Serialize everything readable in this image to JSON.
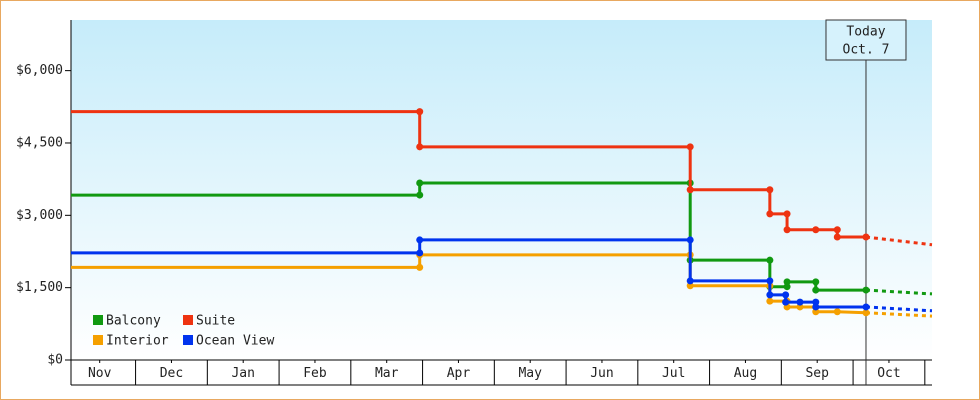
{
  "chart_data": {
    "type": "step-line",
    "xlim": [
      0.1,
      12.1
    ],
    "xticks": [
      {
        "value": 0.5,
        "label": "Nov"
      },
      {
        "value": 1.5,
        "label": "Dec"
      },
      {
        "value": 2.5,
        "label": "Jan"
      },
      {
        "value": 3.5,
        "label": "Feb"
      },
      {
        "value": 4.5,
        "label": "Mar"
      },
      {
        "value": 5.5,
        "label": "Apr"
      },
      {
        "value": 6.5,
        "label": "May"
      },
      {
        "value": 7.5,
        "label": "Jun"
      },
      {
        "value": 8.5,
        "label": "Jul"
      },
      {
        "value": 9.5,
        "label": "Aug"
      },
      {
        "value": 10.5,
        "label": "Sep"
      },
      {
        "value": 11.5,
        "label": "Oct"
      }
    ],
    "ylim": [
      0,
      7050
    ],
    "yticks": [
      {
        "value": 0,
        "label": "$0"
      },
      {
        "value": 1500,
        "label": "$1,500"
      },
      {
        "value": 3000,
        "label": "$3,000"
      },
      {
        "value": 4500,
        "label": "$4,500"
      },
      {
        "value": 6000,
        "label": "$6,000"
      }
    ],
    "grid": false,
    "legend": "lower-left",
    "forecast_x": 12.1,
    "series": [
      {
        "name": "Balcony",
        "color": "#119911",
        "x": [
          0.1,
          4.96,
          4.96,
          8.73,
          8.73,
          9.84,
          9.84,
          10.08,
          10.08,
          10.48,
          10.48,
          11.18
        ],
        "values": [
          3420,
          3420,
          3670,
          3670,
          2070,
          2070,
          1520,
          1520,
          1620,
          1620,
          1450,
          1450
        ],
        "forecast_value": 1370
      },
      {
        "name": "Suite",
        "color": "#ee3311",
        "x": [
          0.1,
          4.96,
          4.96,
          8.73,
          8.73,
          9.84,
          9.84,
          10.08,
          10.08,
          10.48,
          10.78,
          10.78,
          11.18
        ],
        "values": [
          5150,
          5150,
          4420,
          4420,
          3530,
          3530,
          3030,
          3030,
          2700,
          2700,
          2700,
          2550,
          2550
        ],
        "forecast_value": 2390
      },
      {
        "name": "Interior",
        "color": "#f5a000",
        "x": [
          0.1,
          4.96,
          4.96,
          8.73,
          8.73,
          9.84,
          9.84,
          10.08,
          10.08,
          10.26,
          10.48,
          10.48,
          10.78,
          11.18
        ],
        "values": [
          1920,
          1920,
          2180,
          2180,
          1540,
          1540,
          1220,
          1220,
          1100,
          1100,
          1100,
          1000,
          1000,
          980
        ],
        "forecast_value": 910
      },
      {
        "name": "Ocean View",
        "color": "#0033ee",
        "x": [
          0.1,
          4.96,
          4.96,
          8.73,
          8.73,
          9.84,
          9.84,
          10.06,
          10.06,
          10.26,
          10.48,
          10.48,
          11.18
        ],
        "values": [
          2220,
          2220,
          2490,
          2490,
          1640,
          1640,
          1350,
          1350,
          1200,
          1200,
          1200,
          1100,
          1100
        ],
        "forecast_value": 1020
      }
    ],
    "annotation": {
      "x": 11.18,
      "lines": [
        "Today",
        "Oct. 7"
      ]
    }
  }
}
